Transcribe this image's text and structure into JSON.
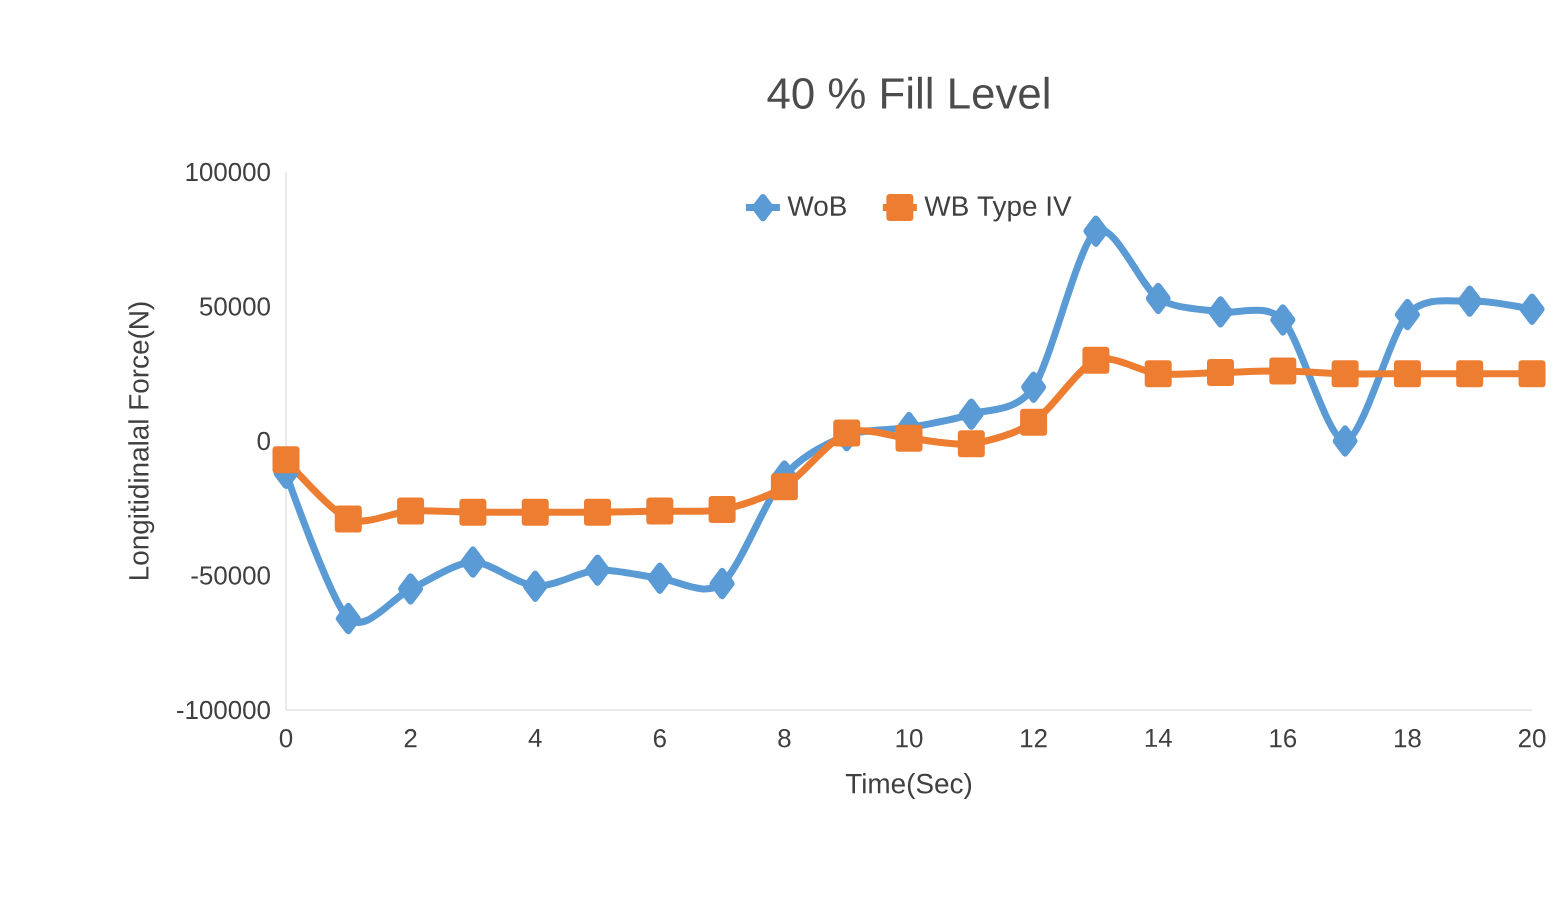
{
  "chart_data": {
    "type": "line",
    "title": "40 % Fill Level",
    "xlabel": "Time(Sec)",
    "ylabel": "Longitidinalal Force(N)",
    "x": [
      0,
      1,
      2,
      3,
      4,
      5,
      6,
      7,
      8,
      9,
      10,
      11,
      12,
      13,
      14,
      15,
      16,
      17,
      18,
      19,
      20
    ],
    "series": [
      {
        "name": "WoB",
        "color": "#5b9bd5",
        "marker": "diamond",
        "values": [
          -12000,
          -66000,
          -55000,
          -45000,
          -54000,
          -48000,
          -51000,
          -53000,
          -13000,
          2000,
          5000,
          10000,
          20000,
          78000,
          53000,
          48000,
          45000,
          0,
          47000,
          52000,
          49000
        ]
      },
      {
        "name": "WB Type IV",
        "color": "#ed7d31",
        "marker": "square",
        "values": [
          -7000,
          -29000,
          -26000,
          -26500,
          -26500,
          -26500,
          -26000,
          -25500,
          -17000,
          3000,
          1000,
          -1000,
          7000,
          30000,
          25000,
          25500,
          26000,
          25000,
          25000,
          25000,
          25000
        ]
      }
    ],
    "xlim": [
      0,
      20
    ],
    "xticks": [
      0,
      2,
      4,
      6,
      8,
      10,
      12,
      14,
      16,
      18,
      20
    ],
    "ylim": [
      -100000,
      100000
    ],
    "yticks": [
      -100000,
      -50000,
      0,
      50000,
      100000
    ],
    "legend": "top",
    "line_style": "solid"
  }
}
